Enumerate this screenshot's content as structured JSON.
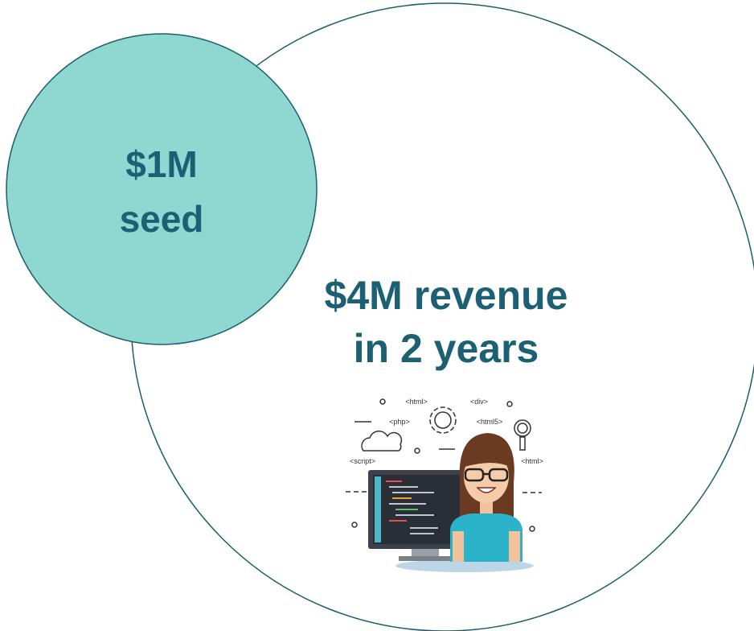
{
  "seed_circle": {
    "lines": [
      "$1M",
      "seed"
    ]
  },
  "main_circle": {
    "lines": [
      "$4M revenue",
      "in 2 years"
    ]
  },
  "illustration": {
    "tags": [
      "<html>",
      "<div>",
      "<php>",
      "<html5>",
      "<script>",
      "<html>"
    ]
  }
}
